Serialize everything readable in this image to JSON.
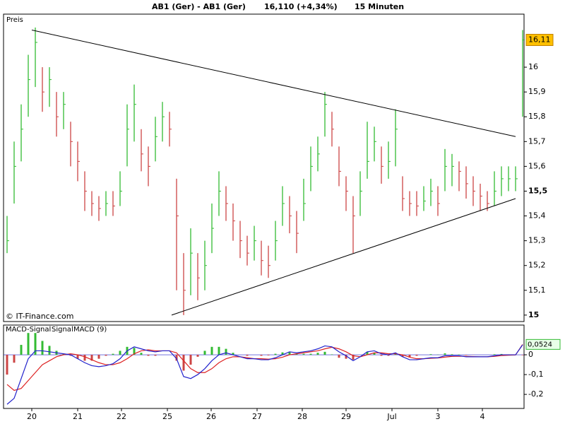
{
  "chart_data": [
    {
      "type": "ohlc",
      "title": "AB1 (Ger) - AB1 (Ger)",
      "last_quote": "16,110 (+4,34%)",
      "interval": "15 Minuten",
      "panel_label": "Preis",
      "source": "© IT-Finance.com",
      "up_color": "#33bb33",
      "down_color": "#cc4444",
      "x": [
        0,
        1,
        2,
        3,
        4,
        5,
        6,
        7,
        8,
        9,
        10,
        11,
        12,
        13,
        14,
        15,
        16,
        17,
        18,
        19,
        20,
        21,
        22,
        23,
        24,
        25,
        26,
        27,
        28,
        29,
        30,
        31,
        32,
        33,
        34,
        35,
        36,
        37,
        38,
        39,
        40,
        41,
        42,
        43,
        44,
        45,
        46,
        47,
        48,
        49,
        50,
        51,
        52,
        53,
        54,
        55,
        56,
        57,
        58,
        59,
        60,
        61,
        62,
        63,
        64,
        65,
        66,
        67,
        68,
        69,
        70,
        71,
        72,
        73
      ],
      "high": [
        15.4,
        15.7,
        15.85,
        16.05,
        16.16,
        16.0,
        16.0,
        15.9,
        15.9,
        15.78,
        15.7,
        15.58,
        15.5,
        15.48,
        15.5,
        15.5,
        15.58,
        15.85,
        15.93,
        15.75,
        15.68,
        15.8,
        15.86,
        15.82,
        15.55,
        15.25,
        15.35,
        15.25,
        15.3,
        15.45,
        15.58,
        15.52,
        15.45,
        15.38,
        15.32,
        15.36,
        15.3,
        15.28,
        15.38,
        15.52,
        15.48,
        15.42,
        15.55,
        15.68,
        15.72,
        15.9,
        15.82,
        15.68,
        15.56,
        15.48,
        15.58,
        15.78,
        15.76,
        15.68,
        15.7,
        15.83,
        15.56,
        15.5,
        15.5,
        15.52,
        15.55,
        15.52,
        15.67,
        15.65,
        15.62,
        15.6,
        15.56,
        15.53,
        15.5,
        15.58,
        15.6,
        15.6,
        15.6,
        16.15
      ],
      "low": [
        15.25,
        15.45,
        15.62,
        15.8,
        15.92,
        15.82,
        15.84,
        15.72,
        15.75,
        15.6,
        15.54,
        15.42,
        15.4,
        15.38,
        15.4,
        15.4,
        15.44,
        15.6,
        15.7,
        15.58,
        15.52,
        15.62,
        15.7,
        15.68,
        15.1,
        15.0,
        15.08,
        15.06,
        15.1,
        15.25,
        15.4,
        15.38,
        15.3,
        15.23,
        15.2,
        15.22,
        15.16,
        15.15,
        15.22,
        15.36,
        15.33,
        15.25,
        15.38,
        15.5,
        15.58,
        15.72,
        15.68,
        15.52,
        15.42,
        15.25,
        15.4,
        15.55,
        15.62,
        15.53,
        15.55,
        15.6,
        15.42,
        15.4,
        15.4,
        15.42,
        15.44,
        15.4,
        15.5,
        15.52,
        15.5,
        15.47,
        15.44,
        15.42,
        15.42,
        15.44,
        15.48,
        15.5,
        15.5,
        15.8
      ],
      "close": [
        15.3,
        15.6,
        15.75,
        15.95,
        16.1,
        15.9,
        15.95,
        15.8,
        15.85,
        15.7,
        15.62,
        15.5,
        15.45,
        15.43,
        15.45,
        15.44,
        15.5,
        15.75,
        15.85,
        15.65,
        15.6,
        15.72,
        15.8,
        15.75,
        15.4,
        15.1,
        15.25,
        15.15,
        15.2,
        15.35,
        15.5,
        15.45,
        15.38,
        15.3,
        15.25,
        15.3,
        15.22,
        15.2,
        15.3,
        15.45,
        15.4,
        15.33,
        15.45,
        15.6,
        15.65,
        15.85,
        15.75,
        15.58,
        15.5,
        15.4,
        15.5,
        15.62,
        15.7,
        15.6,
        15.62,
        15.75,
        15.47,
        15.45,
        15.44,
        15.46,
        15.5,
        15.45,
        15.6,
        15.6,
        15.58,
        15.53,
        15.5,
        15.48,
        15.45,
        15.5,
        15.55,
        15.55,
        15.55,
        16.11
      ],
      "trendlines": [
        {
          "x": [
            3.5,
            72
          ],
          "y": [
            16.15,
            15.72
          ]
        },
        {
          "x": [
            23.3,
            72
          ],
          "y": [
            15.0,
            15.47
          ]
        }
      ],
      "last_price": {
        "value": 16.11,
        "label": "16,11"
      },
      "xlim": [
        -0.5,
        73.2
      ],
      "ylim": [
        14.974,
        16.214
      ],
      "yticks": [
        15,
        {
          "value": 15.1,
          "label": "15,1"
        },
        {
          "value": 15.2,
          "label": "15,2"
        },
        {
          "value": 15.3,
          "label": "15,3"
        },
        {
          "value": 15.4,
          "label": "15,4"
        },
        {
          "value": 15.5,
          "label": "15,5"
        },
        {
          "value": 15.6,
          "label": "15,6"
        },
        {
          "value": 15.7,
          "label": "15,7"
        },
        {
          "value": 15.8,
          "label": "15,8"
        },
        {
          "value": 15.9,
          "label": "15,9"
        },
        16
      ]
    },
    {
      "type": "macd",
      "x": [
        0,
        1,
        2,
        3,
        4,
        5,
        6,
        7,
        8,
        9,
        10,
        11,
        12,
        13,
        14,
        15,
        16,
        17,
        18,
        19,
        20,
        21,
        22,
        23,
        24,
        25,
        26,
        27,
        28,
        29,
        30,
        31,
        32,
        33,
        34,
        35,
        36,
        37,
        38,
        39,
        40,
        41,
        42,
        43,
        44,
        45,
        46,
        47,
        48,
        49,
        50,
        51,
        52,
        53,
        54,
        55,
        56,
        57,
        58,
        59,
        60,
        61,
        62,
        63,
        64,
        65,
        66,
        67,
        68,
        69,
        70,
        71,
        72,
        73
      ],
      "series": [
        {
          "name": "MACD-Signal",
          "kind": "histogram",
          "color": "#33bb33",
          "down_color": "#cc4444",
          "values": [
            -0.1,
            -0.04,
            0.05,
            0.11,
            0.11,
            0.07,
            0.045,
            0.02,
            0.005,
            -0.005,
            -0.02,
            -0.03,
            -0.03,
            -0.02,
            -0.005,
            0.005,
            0.02,
            0.04,
            0.035,
            0.01,
            -0.005,
            -0.005,
            0.0,
            0.0,
            -0.03,
            -0.08,
            -0.05,
            -0.01,
            0.02,
            0.04,
            0.04,
            0.03,
            0.01,
            0.0,
            -0.005,
            0.0,
            -0.005,
            -0.003,
            0.005,
            0.012,
            0.015,
            0.005,
            0.005,
            0.005,
            0.01,
            0.015,
            0.002,
            -0.015,
            -0.02,
            -0.025,
            0.0,
            0.015,
            0.01,
            -0.005,
            -0.005,
            0.005,
            -0.01,
            -0.013,
            -0.005,
            0.0,
            0.003,
            0.001,
            0.007,
            0.003,
            0.002,
            -0.002,
            -0.001,
            0.0,
            0.0,
            0.003,
            0.004,
            0.002,
            0.001,
            -0.0024
          ]
        },
        {
          "name": "Signal",
          "kind": "line",
          "color": "#dd2222",
          "values": [
            -0.15,
            -0.18,
            -0.17,
            -0.13,
            -0.09,
            -0.05,
            -0.03,
            -0.01,
            0.0,
            0.005,
            0.0,
            -0.01,
            -0.025,
            -0.04,
            -0.05,
            -0.05,
            -0.04,
            -0.02,
            0.005,
            0.02,
            0.025,
            0.02,
            0.02,
            0.02,
            0.01,
            -0.03,
            -0.07,
            -0.09,
            -0.09,
            -0.07,
            -0.04,
            -0.02,
            -0.01,
            -0.01,
            -0.015,
            -0.02,
            -0.02,
            -0.022,
            -0.02,
            -0.012,
            0.0,
            0.005,
            0.01,
            0.015,
            0.02,
            0.03,
            0.038,
            0.03,
            0.015,
            -0.005,
            -0.01,
            0.0,
            0.01,
            0.01,
            0.005,
            0.005,
            0.0,
            -0.012,
            -0.02,
            -0.02,
            -0.018,
            -0.016,
            -0.012,
            -0.008,
            -0.007,
            -0.008,
            -0.009,
            -0.01,
            -0.01,
            -0.008,
            -0.004,
            -0.002,
            -0.001,
            0.0524
          ]
        },
        {
          "name": "MACD (9)",
          "kind": "line",
          "color": "#2222cc",
          "values": [
            -0.25,
            -0.22,
            -0.12,
            -0.02,
            0.02,
            0.02,
            0.015,
            0.01,
            0.005,
            0.0,
            -0.02,
            -0.04,
            -0.055,
            -0.06,
            -0.055,
            -0.045,
            -0.02,
            0.02,
            0.04,
            0.03,
            0.02,
            0.015,
            0.02,
            0.02,
            -0.02,
            -0.11,
            -0.12,
            -0.1,
            -0.07,
            -0.03,
            0.0,
            0.01,
            0.0,
            -0.01,
            -0.02,
            -0.02,
            -0.025,
            -0.025,
            -0.015,
            0.0,
            0.015,
            0.01,
            0.015,
            0.02,
            0.03,
            0.045,
            0.04,
            0.015,
            -0.005,
            -0.03,
            -0.01,
            0.015,
            0.02,
            0.005,
            0.0,
            0.01,
            -0.01,
            -0.025,
            -0.025,
            -0.02,
            -0.015,
            -0.015,
            -0.005,
            -0.005,
            -0.005,
            -0.01,
            -0.01,
            -0.01,
            -0.01,
            -0.005,
            0.0,
            0.0,
            0.0,
            0.05
          ]
        }
      ],
      "last_value": {
        "value": 0.0524,
        "label": "0,0524"
      },
      "xlim": [
        -0.5,
        73.2
      ],
      "ylim": [
        -0.271,
        0.15
      ],
      "yticks": [
        {
          "value": -0.2,
          "label": "-0,2"
        },
        {
          "value": -0.1,
          "label": "-0,1"
        },
        0
      ],
      "xticks": [
        {
          "value": 3.5,
          "label": "20"
        },
        {
          "value": 10,
          "label": "21"
        },
        {
          "value": 16.2,
          "label": "22"
        },
        {
          "value": 22.7,
          "label": "25"
        },
        {
          "value": 28.9,
          "label": "26"
        },
        {
          "value": 35.4,
          "label": "27"
        },
        {
          "value": 41.8,
          "label": "28"
        },
        {
          "value": 48,
          "label": "29"
        },
        {
          "value": 54.5,
          "label": "Jul"
        },
        {
          "value": 61,
          "label": "3"
        },
        {
          "value": 67.3,
          "label": "4"
        }
      ]
    }
  ]
}
